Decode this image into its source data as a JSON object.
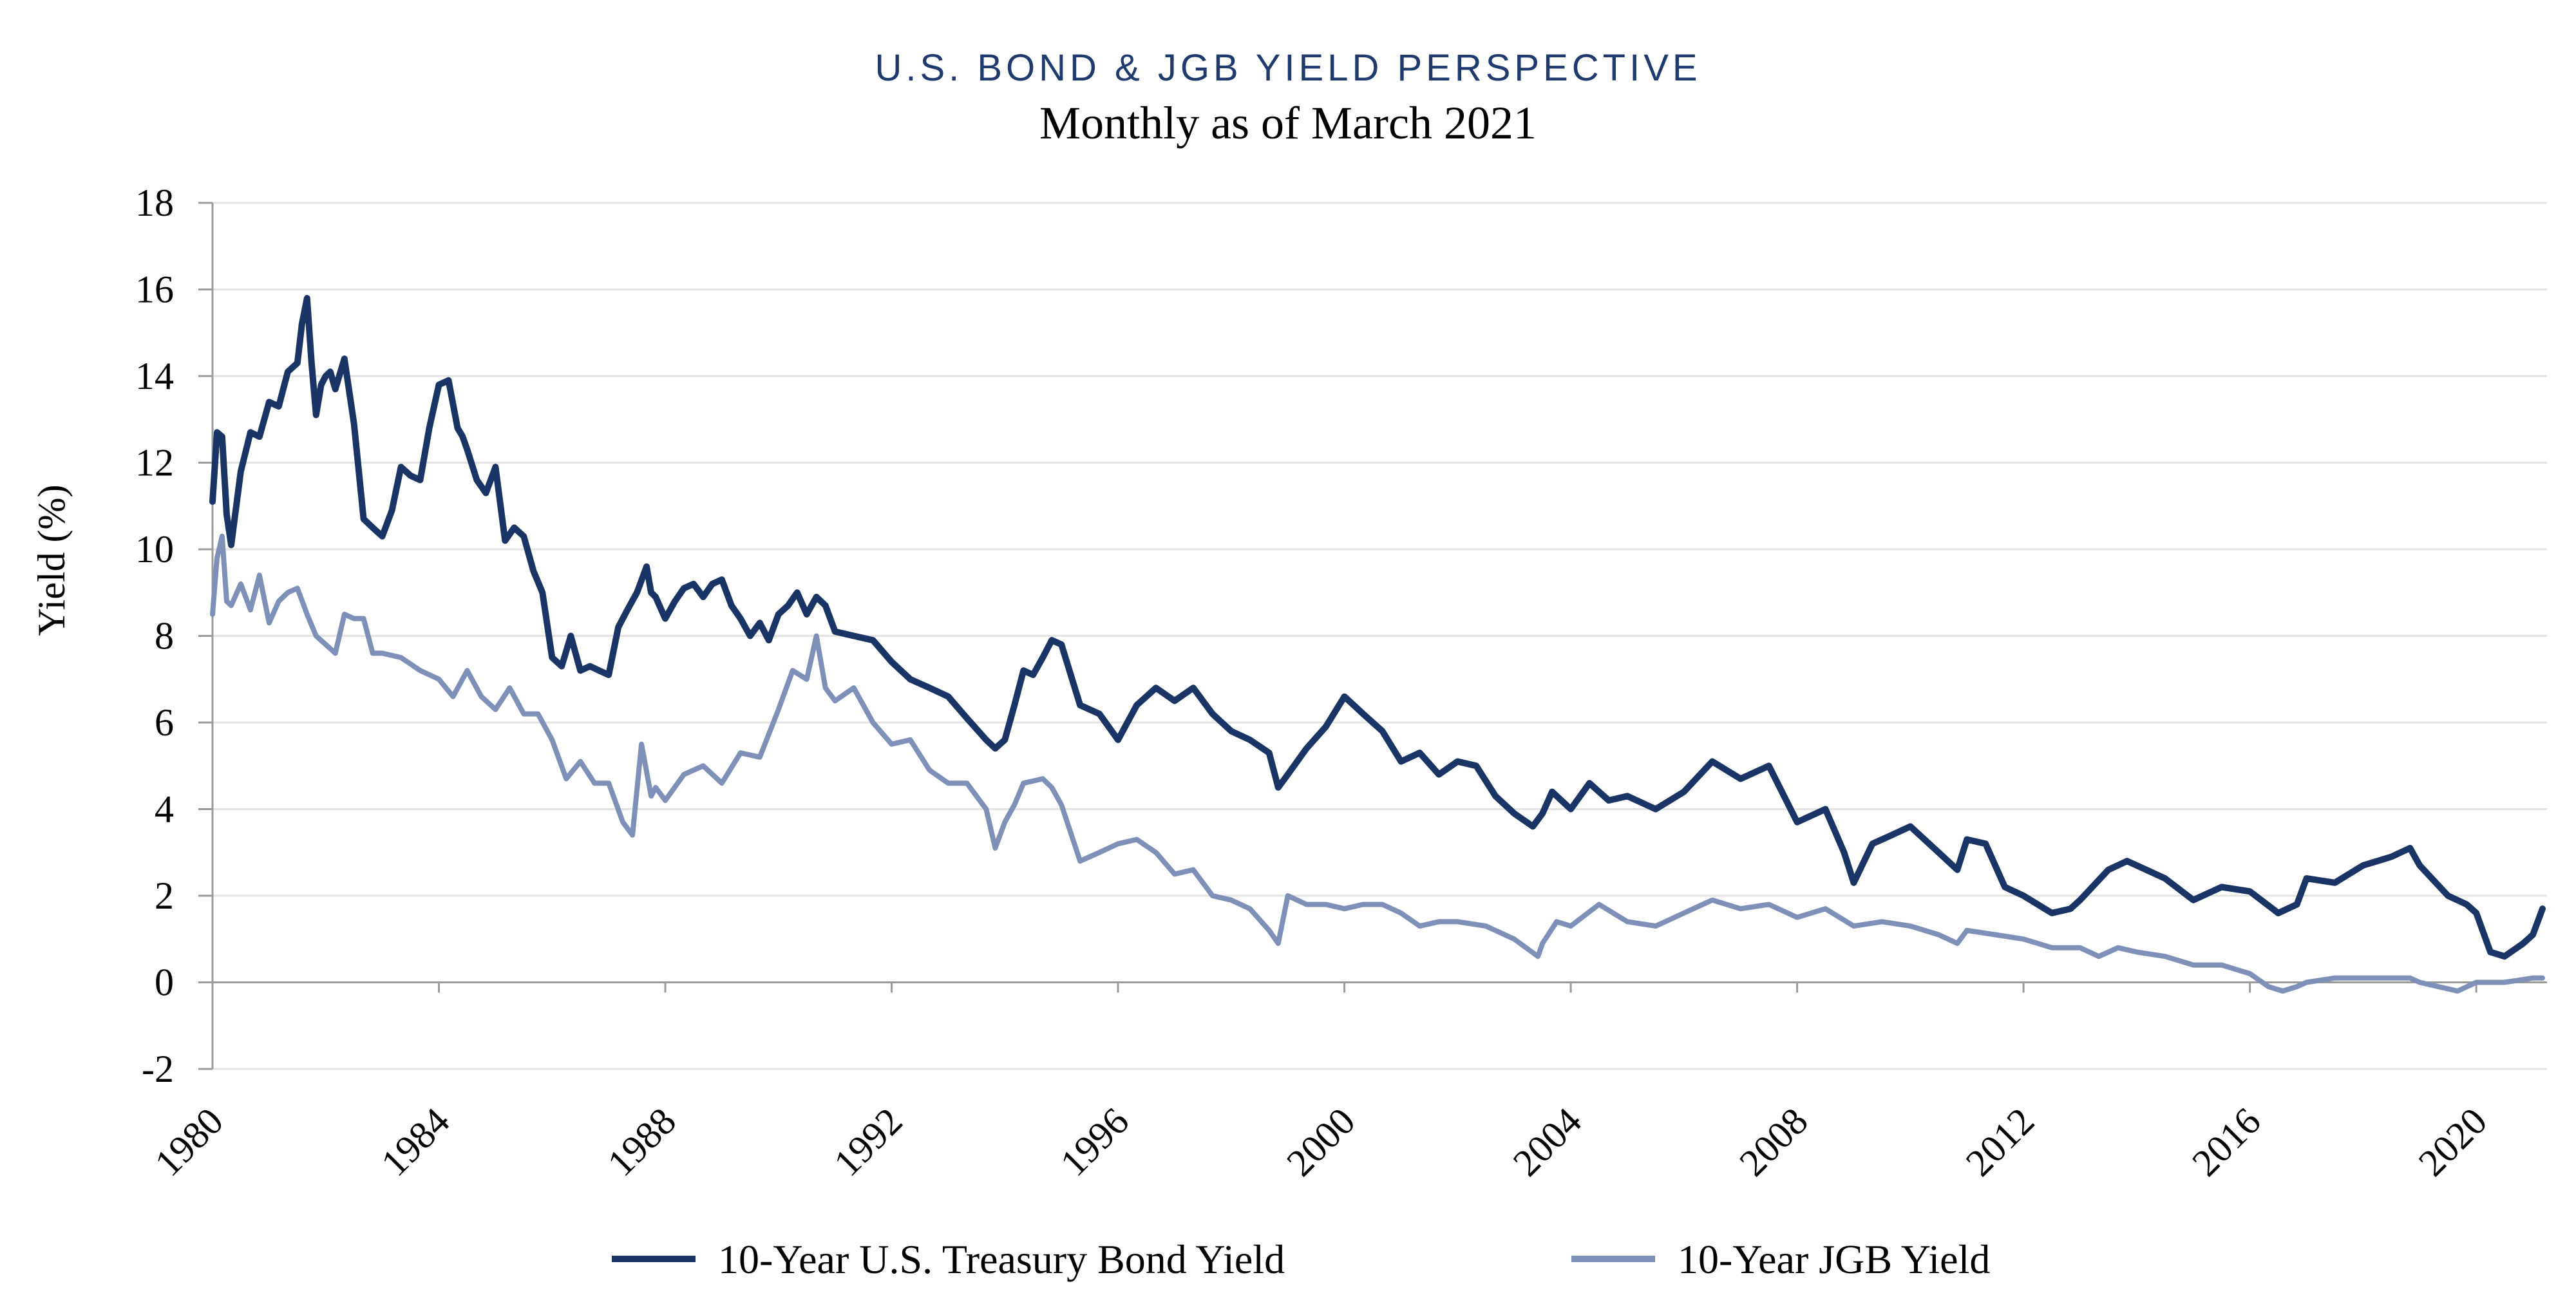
{
  "chart_data": {
    "type": "line",
    "title": "U.S. BOND & JGB YIELD PERSPECTIVE",
    "subtitle": "Monthly as of March 2021",
    "ylabel": "Yield (%)",
    "xlabel": "",
    "ylim": [
      -2,
      18
    ],
    "xlim": [
      1980,
      2021.25
    ],
    "yticks": [
      "18",
      "16",
      "14",
      "12",
      "10",
      "8",
      "6",
      "4",
      "2",
      "0",
      "-2"
    ],
    "xticks": [
      "1980",
      "1984",
      "1988",
      "1992",
      "1996",
      "2000",
      "2004",
      "2008",
      "2012",
      "2016",
      "2020"
    ],
    "grid": true,
    "legend_position": "bottom",
    "colors": {
      "us": "#1b3466",
      "jgb": "#7e8fb8",
      "grid": "#e3e3e3",
      "axis": "#9a9a9a",
      "title": "#1f3a6e"
    },
    "series": [
      {
        "name": "10-Year U.S. Treasury Bond Yield",
        "x": [
          1980.0,
          1980.08,
          1980.17,
          1980.25,
          1980.33,
          1980.5,
          1980.67,
          1980.83,
          1981.0,
          1981.17,
          1981.33,
          1981.5,
          1981.58,
          1981.67,
          1981.75,
          1981.83,
          1981.92,
          1982.0,
          1982.08,
          1982.17,
          1982.33,
          1982.5,
          1982.67,
          1982.83,
          1983.0,
          1983.17,
          1983.33,
          1983.5,
          1983.67,
          1983.83,
          1984.0,
          1984.17,
          1984.33,
          1984.42,
          1984.5,
          1984.67,
          1984.83,
          1985.0,
          1985.17,
          1985.33,
          1985.5,
          1985.67,
          1985.83,
          1986.0,
          1986.17,
          1986.33,
          1986.5,
          1986.67,
          1986.83,
          1987.0,
          1987.17,
          1987.33,
          1987.5,
          1987.67,
          1987.75,
          1987.83,
          1988.0,
          1988.17,
          1988.33,
          1988.5,
          1988.67,
          1988.83,
          1989.0,
          1989.17,
          1989.33,
          1989.5,
          1989.67,
          1989.83,
          1990.0,
          1990.17,
          1990.33,
          1990.5,
          1990.67,
          1990.83,
          1991.0,
          1991.33,
          1991.67,
          1992.0,
          1992.33,
          1992.67,
          1993.0,
          1993.33,
          1993.67,
          1993.83,
          1994.0,
          1994.17,
          1994.33,
          1994.5,
          1994.67,
          1994.83,
          1995.0,
          1995.33,
          1995.67,
          1996.0,
          1996.33,
          1996.67,
          1997.0,
          1997.33,
          1997.67,
          1998.0,
          1998.33,
          1998.67,
          1998.83,
          1999.0,
          1999.33,
          1999.67,
          2000.0,
          2000.33,
          2000.67,
          2001.0,
          2001.33,
          2001.67,
          2002.0,
          2002.33,
          2002.67,
          2003.0,
          2003.33,
          2003.5,
          2003.67,
          2004.0,
          2004.33,
          2004.67,
          2005.0,
          2005.5,
          2006.0,
          2006.5,
          2007.0,
          2007.5,
          2008.0,
          2008.5,
          2008.83,
          2009.0,
          2009.33,
          2009.67,
          2010.0,
          2010.5,
          2010.83,
          2011.0,
          2011.33,
          2011.67,
          2012.0,
          2012.5,
          2012.83,
          2013.0,
          2013.5,
          2013.83,
          2014.0,
          2014.5,
          2015.0,
          2015.5,
          2016.0,
          2016.5,
          2016.83,
          2017.0,
          2017.5,
          2018.0,
          2018.5,
          2018.83,
          2019.0,
          2019.5,
          2019.83,
          2020.0,
          2020.25,
          2020.5,
          2020.83,
          2021.0,
          2021.17
        ],
        "values": [
          11.1,
          12.7,
          12.6,
          10.8,
          10.1,
          11.8,
          12.7,
          12.6,
          13.4,
          13.3,
          14.1,
          14.3,
          15.2,
          15.8,
          14.3,
          13.1,
          13.8,
          14.0,
          14.1,
          13.7,
          14.4,
          12.9,
          10.7,
          10.5,
          10.3,
          10.9,
          11.9,
          11.7,
          11.6,
          12.8,
          13.8,
          13.9,
          12.8,
          12.6,
          12.3,
          11.6,
          11.3,
          11.9,
          10.2,
          10.5,
          10.3,
          9.5,
          9.0,
          7.5,
          7.3,
          8.0,
          7.2,
          7.3,
          7.2,
          7.1,
          8.2,
          8.6,
          9.0,
          9.6,
          9.0,
          8.9,
          8.4,
          8.8,
          9.1,
          9.2,
          8.9,
          9.2,
          9.3,
          8.7,
          8.4,
          8.0,
          8.3,
          7.9,
          8.5,
          8.7,
          9.0,
          8.5,
          8.9,
          8.7,
          8.1,
          8.0,
          7.9,
          7.4,
          7.0,
          6.8,
          6.6,
          6.1,
          5.6,
          5.4,
          5.6,
          6.4,
          7.2,
          7.1,
          7.5,
          7.9,
          7.8,
          6.4,
          6.2,
          5.6,
          6.4,
          6.8,
          6.5,
          6.8,
          6.2,
          5.8,
          5.6,
          5.3,
          4.5,
          4.8,
          5.4,
          5.9,
          6.6,
          6.2,
          5.8,
          5.1,
          5.3,
          4.8,
          5.1,
          5.0,
          4.3,
          3.9,
          3.6,
          3.9,
          4.4,
          4.0,
          4.6,
          4.2,
          4.3,
          4.0,
          4.4,
          5.1,
          4.7,
          5.0,
          3.7,
          4.0,
          3.0,
          2.3,
          3.2,
          3.4,
          3.6,
          3.0,
          2.6,
          3.3,
          3.2,
          2.2,
          2.0,
          1.6,
          1.7,
          1.9,
          2.6,
          2.8,
          2.7,
          2.4,
          1.9,
          2.2,
          2.1,
          1.6,
          1.8,
          2.4,
          2.3,
          2.7,
          2.9,
          3.1,
          2.7,
          2.0,
          1.8,
          1.6,
          0.7,
          0.6,
          0.9,
          1.1,
          1.7
        ]
      },
      {
        "name": "10-Year JGB Yield",
        "x": [
          1980.0,
          1980.08,
          1980.17,
          1980.25,
          1980.33,
          1980.5,
          1980.67,
          1980.83,
          1981.0,
          1981.17,
          1981.33,
          1981.5,
          1981.67,
          1981.83,
          1982.0,
          1982.17,
          1982.33,
          1982.5,
          1982.67,
          1982.83,
          1983.0,
          1983.33,
          1983.67,
          1984.0,
          1984.25,
          1984.5,
          1984.75,
          1985.0,
          1985.25,
          1985.5,
          1985.75,
          1986.0,
          1986.25,
          1986.5,
          1986.75,
          1987.0,
          1987.25,
          1987.42,
          1987.58,
          1987.75,
          1987.83,
          1988.0,
          1988.33,
          1988.67,
          1989.0,
          1989.33,
          1989.67,
          1990.0,
          1990.25,
          1990.5,
          1990.67,
          1990.83,
          1991.0,
          1991.33,
          1991.67,
          1992.0,
          1992.33,
          1992.67,
          1993.0,
          1993.33,
          1993.67,
          1993.83,
          1994.0,
          1994.17,
          1994.33,
          1994.67,
          1994.83,
          1995.0,
          1995.33,
          1995.67,
          1996.0,
          1996.33,
          1996.67,
          1997.0,
          1997.33,
          1997.67,
          1998.0,
          1998.33,
          1998.67,
          1998.83,
          1999.0,
          1999.33,
          1999.67,
          2000.0,
          2000.33,
          2000.67,
          2001.0,
          2001.33,
          2001.67,
          2002.0,
          2002.5,
          2003.0,
          2003.42,
          2003.5,
          2003.75,
          2004.0,
          2004.5,
          2005.0,
          2005.5,
          2006.0,
          2006.5,
          2007.0,
          2007.5,
          2008.0,
          2008.5,
          2009.0,
          2009.5,
          2010.0,
          2010.5,
          2010.83,
          2011.0,
          2011.5,
          2012.0,
          2012.5,
          2013.0,
          2013.33,
          2013.67,
          2014.0,
          2014.5,
          2015.0,
          2015.5,
          2016.0,
          2016.33,
          2016.58,
          2016.83,
          2017.0,
          2017.5,
          2018.0,
          2018.5,
          2018.83,
          2019.0,
          2019.33,
          2019.67,
          2020.0,
          2020.5,
          2021.0,
          2021.17
        ],
        "values": [
          8.5,
          9.8,
          10.3,
          8.8,
          8.7,
          9.2,
          8.6,
          9.4,
          8.3,
          8.8,
          9.0,
          9.1,
          8.5,
          8.0,
          7.8,
          7.6,
          8.5,
          8.4,
          8.4,
          7.6,
          7.6,
          7.5,
          7.2,
          7.0,
          6.6,
          7.2,
          6.6,
          6.3,
          6.8,
          6.2,
          6.2,
          5.6,
          4.7,
          5.1,
          4.6,
          4.6,
          3.7,
          3.4,
          5.5,
          4.3,
          4.5,
          4.2,
          4.8,
          5.0,
          4.6,
          5.3,
          5.2,
          6.3,
          7.2,
          7.0,
          8.0,
          6.8,
          6.5,
          6.8,
          6.0,
          5.5,
          5.6,
          4.9,
          4.6,
          4.6,
          4.0,
          3.1,
          3.7,
          4.1,
          4.6,
          4.7,
          4.5,
          4.1,
          2.8,
          3.0,
          3.2,
          3.3,
          3.0,
          2.5,
          2.6,
          2.0,
          1.9,
          1.7,
          1.2,
          0.9,
          2.0,
          1.8,
          1.8,
          1.7,
          1.8,
          1.8,
          1.6,
          1.3,
          1.4,
          1.4,
          1.3,
          1.0,
          0.6,
          0.9,
          1.4,
          1.3,
          1.8,
          1.4,
          1.3,
          1.6,
          1.9,
          1.7,
          1.8,
          1.5,
          1.7,
          1.3,
          1.4,
          1.3,
          1.1,
          0.9,
          1.2,
          1.1,
          1.0,
          0.8,
          0.8,
          0.6,
          0.8,
          0.7,
          0.6,
          0.4,
          0.4,
          0.2,
          -0.1,
          -0.2,
          -0.1,
          0.0,
          0.1,
          0.1,
          0.1,
          0.1,
          0.0,
          -0.1,
          -0.2,
          0.0,
          0.0,
          0.1,
          0.1
        ]
      }
    ]
  }
}
